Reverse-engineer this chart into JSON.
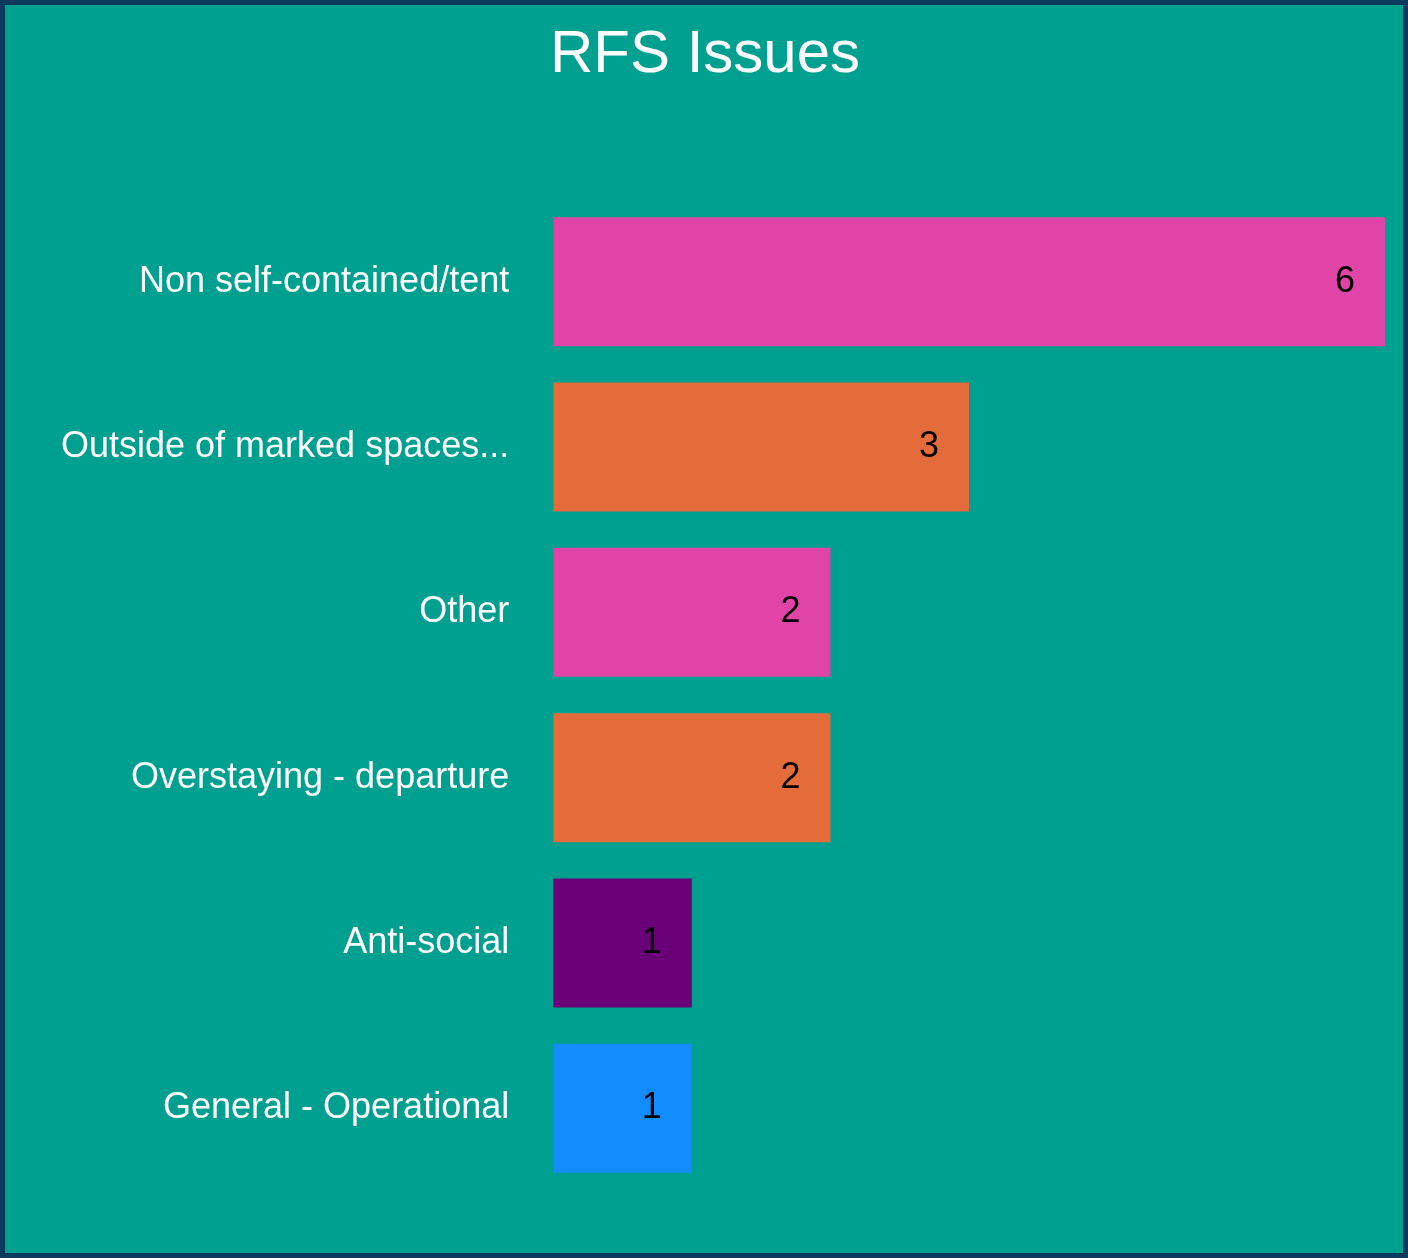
{
  "chart_data": {
    "type": "bar",
    "orientation": "horizontal",
    "title": "RFS Issues",
    "categories": [
      "Non self-contained/tent",
      "Outside of marked spaces...",
      "Other",
      "Overstaying - departure",
      "Anti-social",
      "General - Operational"
    ],
    "values": [
      6,
      3,
      2,
      2,
      1,
      1
    ],
    "colors": [
      "#e044a7",
      "#e46c3a",
      "#e044a7",
      "#e46c3a",
      "#6a0078",
      "#118dff"
    ],
    "xlim": [
      0,
      6
    ],
    "data_labels": true,
    "legend": false,
    "tick_labels": "y"
  }
}
